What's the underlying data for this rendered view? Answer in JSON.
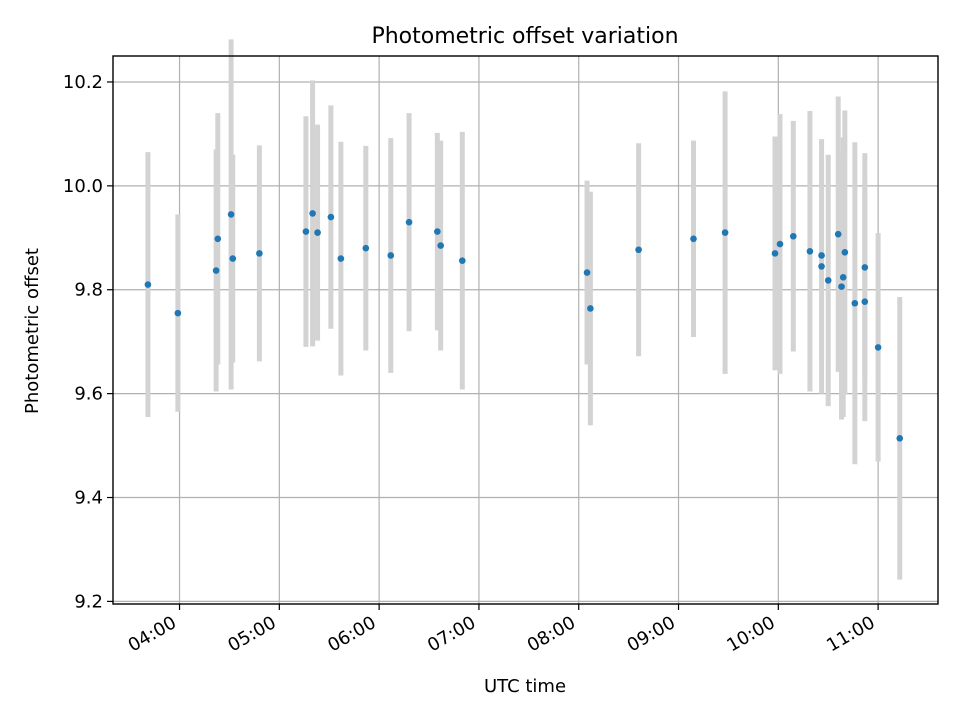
{
  "chart_data": {
    "type": "scatter",
    "title": "Photometric offset variation",
    "xlabel": "UTC time",
    "ylabel": "Photometric offset",
    "x_unit": "UTC time of day",
    "xlim": [
      "03:20",
      "11:36"
    ],
    "ylim": [
      9.195,
      10.25
    ],
    "x_ticks": [
      "04:00",
      "05:00",
      "06:00",
      "07:00",
      "08:00",
      "09:00",
      "10:00",
      "11:00"
    ],
    "y_ticks": [
      "9.2",
      "9.4",
      "9.6",
      "9.8",
      "10.0",
      "10.2"
    ],
    "grid": true,
    "marker_color": "#1f77b4",
    "errorbar_color": "#d3d3d3",
    "points": [
      {
        "t": "03:41",
        "y": 9.81,
        "err": 0.255
      },
      {
        "t": "03:59",
        "y": 9.755,
        "err": 0.19
      },
      {
        "t": "04:22",
        "y": 9.837,
        "err": 0.233
      },
      {
        "t": "04:23",
        "y": 9.898,
        "err": 0.242
      },
      {
        "t": "04:31",
        "y": 9.945,
        "err": 0.337
      },
      {
        "t": "04:32",
        "y": 9.86,
        "err": 0.2
      },
      {
        "t": "04:48",
        "y": 9.87,
        "err": 0.208
      },
      {
        "t": "05:16",
        "y": 9.912,
        "err": 0.222
      },
      {
        "t": "05:20",
        "y": 9.947,
        "err": 0.256
      },
      {
        "t": "05:23",
        "y": 9.91,
        "err": 0.208
      },
      {
        "t": "05:31",
        "y": 9.94,
        "err": 0.215
      },
      {
        "t": "05:37",
        "y": 9.86,
        "err": 0.225
      },
      {
        "t": "05:52",
        "y": 9.88,
        "err": 0.197
      },
      {
        "t": "06:07",
        "y": 9.866,
        "err": 0.226
      },
      {
        "t": "06:18",
        "y": 9.93,
        "err": 0.21
      },
      {
        "t": "06:35",
        "y": 9.912,
        "err": 0.19
      },
      {
        "t": "06:37",
        "y": 9.885,
        "err": 0.202
      },
      {
        "t": "06:50",
        "y": 9.856,
        "err": 0.248
      },
      {
        "t": "08:05",
        "y": 9.833,
        "err": 0.177
      },
      {
        "t": "08:07",
        "y": 9.764,
        "err": 0.225
      },
      {
        "t": "08:36",
        "y": 9.877,
        "err": 0.205
      },
      {
        "t": "09:09",
        "y": 9.898,
        "err": 0.189
      },
      {
        "t": "09:28",
        "y": 9.91,
        "err": 0.272
      },
      {
        "t": "09:58",
        "y": 9.87,
        "err": 0.225
      },
      {
        "t": "10:01",
        "y": 9.888,
        "err": 0.25
      },
      {
        "t": "10:09",
        "y": 9.903,
        "err": 0.222
      },
      {
        "t": "10:19",
        "y": 9.874,
        "err": 0.27
      },
      {
        "t": "10:26",
        "y": 9.866,
        "err": 0.196
      },
      {
        "t": "10:26",
        "y": 9.845,
        "err": 0.245
      },
      {
        "t": "10:30",
        "y": 9.818,
        "err": 0.242
      },
      {
        "t": "10:36",
        "y": 9.907,
        "err": 0.265
      },
      {
        "t": "10:38",
        "y": 9.806,
        "err": 0.256
      },
      {
        "t": "10:39",
        "y": 9.824,
        "err": 0.269
      },
      {
        "t": "10:40",
        "y": 9.872,
        "err": 0.273
      },
      {
        "t": "10:46",
        "y": 9.774,
        "err": 0.31
      },
      {
        "t": "10:52",
        "y": 9.777,
        "err": 0.23
      },
      {
        "t": "10:52",
        "y": 9.843,
        "err": 0.22
      },
      {
        "t": "11:00",
        "y": 9.689,
        "err": 0.22
      },
      {
        "t": "11:13",
        "y": 9.514,
        "err": 0.272
      }
    ]
  }
}
